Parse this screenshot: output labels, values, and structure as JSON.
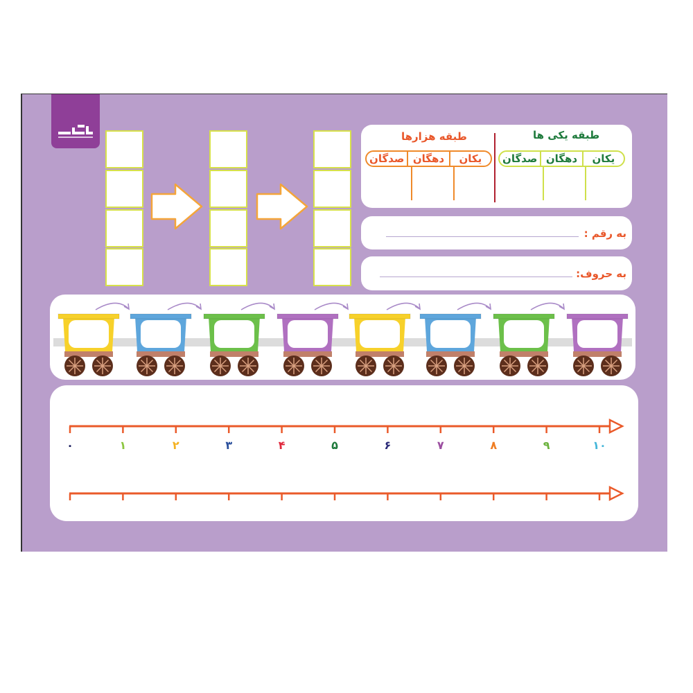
{
  "logo": {
    "text": "گراد",
    "tagline": "گروه آموزشی"
  },
  "place_value": {
    "thousands_title": "طبقه هزارها",
    "ones_title": "طبقه یکی ها",
    "columns": [
      "یکان",
      "دهگان",
      "صدگان"
    ],
    "thousands_color": "#ef8a2a",
    "thousands_text_color": "#e9572a",
    "ones_color": "#cfe04a",
    "ones_text_color": "#1e7a3c",
    "divider_color": "#b0202e"
  },
  "answer_fields": {
    "digits_label": "به رقم :",
    "words_label": "به حروف:"
  },
  "train": {
    "wagon_colors": [
      "#f7d12a",
      "#5ea6dc",
      "#6cc04a",
      "#b070c0",
      "#f7d12a",
      "#5ea6dc",
      "#6cc04a",
      "#b070c0"
    ],
    "arrow_color": "#a98ac8"
  },
  "number_line": {
    "color": "#ea5a2a",
    "labels": [
      "۰",
      "۱",
      "۲",
      "۳",
      "۴",
      "۵",
      "۶",
      "۷",
      "۸",
      "۹",
      "۱۰"
    ],
    "label_colors": [
      "#1d2060",
      "#8cc63f",
      "#f4b223",
      "#2a4f9c",
      "#e0283c",
      "#1e7a3c",
      "#2b2a78",
      "#9b4ea0",
      "#ef7d22",
      "#6cb33f",
      "#45b6d9"
    ]
  }
}
